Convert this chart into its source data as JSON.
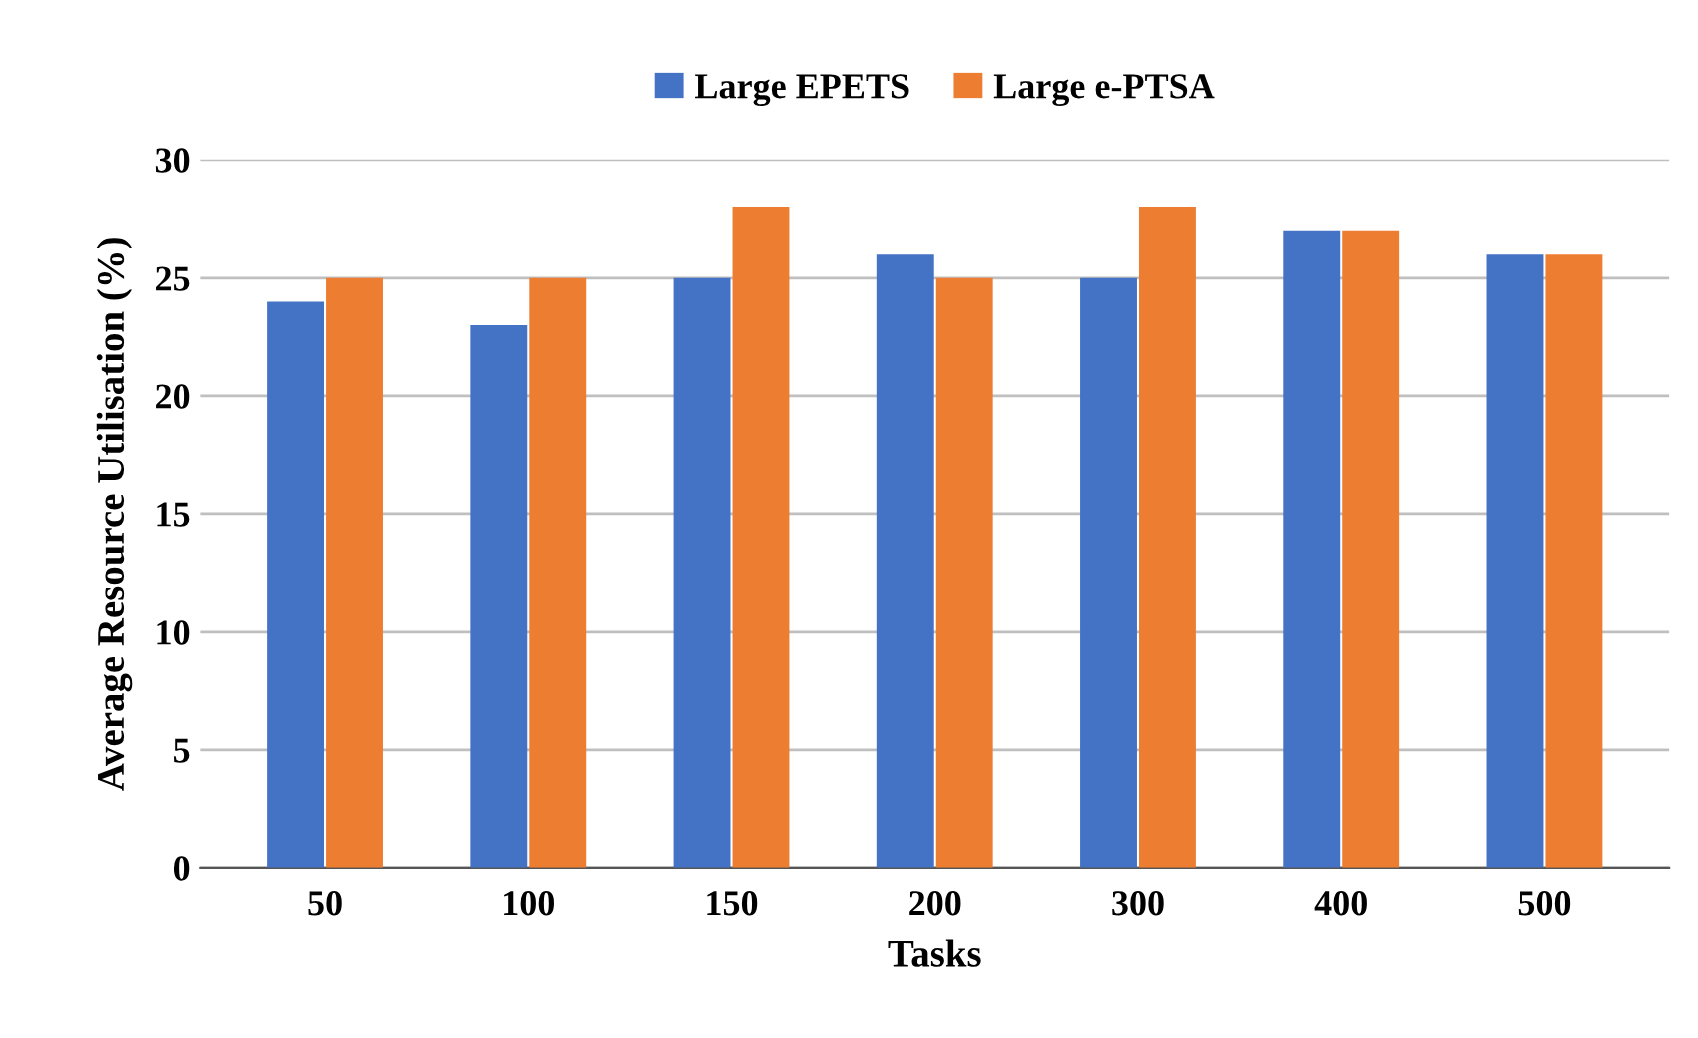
{
  "chart_data": {
    "type": "bar",
    "xlabel": "Tasks",
    "ylabel": "Average Resource Utilisation (%)",
    "categories": [
      "50",
      "100",
      "150",
      "200",
      "300",
      "400",
      "500"
    ],
    "series": [
      {
        "name": "Large EPETS",
        "color": "#4472c4",
        "values": [
          24,
          23,
          25,
          26,
          25,
          27,
          26
        ]
      },
      {
        "name": "Large e-PTSA",
        "color": "#ed7d31",
        "values": [
          25,
          25,
          28,
          25,
          28,
          27,
          26
        ]
      }
    ],
    "ylim": [
      0,
      30
    ],
    "yticks": [
      0,
      5,
      10,
      15,
      20,
      25,
      30
    ],
    "grid": "y",
    "legend": "top"
  }
}
